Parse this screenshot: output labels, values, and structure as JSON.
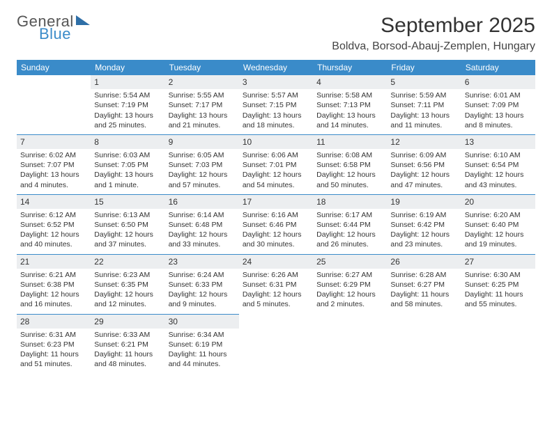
{
  "logo": {
    "general": "General",
    "blue": "Blue"
  },
  "title": "September 2025",
  "location": "Boldva, Borsod-Abauj-Zemplen, Hungary",
  "colors": {
    "header_bg": "#3a8bc9",
    "border": "#3a8bc9",
    "daynum_bg": "#eceef0",
    "text": "#333333"
  },
  "weekdays": [
    "Sunday",
    "Monday",
    "Tuesday",
    "Wednesday",
    "Thursday",
    "Friday",
    "Saturday"
  ],
  "cells": [
    [
      null,
      {
        "n": "1",
        "sr": "Sunrise: 5:54 AM",
        "ss": "Sunset: 7:19 PM",
        "dl1": "Daylight: 13 hours",
        "dl2": "and 25 minutes."
      },
      {
        "n": "2",
        "sr": "Sunrise: 5:55 AM",
        "ss": "Sunset: 7:17 PM",
        "dl1": "Daylight: 13 hours",
        "dl2": "and 21 minutes."
      },
      {
        "n": "3",
        "sr": "Sunrise: 5:57 AM",
        "ss": "Sunset: 7:15 PM",
        "dl1": "Daylight: 13 hours",
        "dl2": "and 18 minutes."
      },
      {
        "n": "4",
        "sr": "Sunrise: 5:58 AM",
        "ss": "Sunset: 7:13 PM",
        "dl1": "Daylight: 13 hours",
        "dl2": "and 14 minutes."
      },
      {
        "n": "5",
        "sr": "Sunrise: 5:59 AM",
        "ss": "Sunset: 7:11 PM",
        "dl1": "Daylight: 13 hours",
        "dl2": "and 11 minutes."
      },
      {
        "n": "6",
        "sr": "Sunrise: 6:01 AM",
        "ss": "Sunset: 7:09 PM",
        "dl1": "Daylight: 13 hours",
        "dl2": "and 8 minutes."
      }
    ],
    [
      {
        "n": "7",
        "sr": "Sunrise: 6:02 AM",
        "ss": "Sunset: 7:07 PM",
        "dl1": "Daylight: 13 hours",
        "dl2": "and 4 minutes."
      },
      {
        "n": "8",
        "sr": "Sunrise: 6:03 AM",
        "ss": "Sunset: 7:05 PM",
        "dl1": "Daylight: 13 hours",
        "dl2": "and 1 minute."
      },
      {
        "n": "9",
        "sr": "Sunrise: 6:05 AM",
        "ss": "Sunset: 7:03 PM",
        "dl1": "Daylight: 12 hours",
        "dl2": "and 57 minutes."
      },
      {
        "n": "10",
        "sr": "Sunrise: 6:06 AM",
        "ss": "Sunset: 7:01 PM",
        "dl1": "Daylight: 12 hours",
        "dl2": "and 54 minutes."
      },
      {
        "n": "11",
        "sr": "Sunrise: 6:08 AM",
        "ss": "Sunset: 6:58 PM",
        "dl1": "Daylight: 12 hours",
        "dl2": "and 50 minutes."
      },
      {
        "n": "12",
        "sr": "Sunrise: 6:09 AM",
        "ss": "Sunset: 6:56 PM",
        "dl1": "Daylight: 12 hours",
        "dl2": "and 47 minutes."
      },
      {
        "n": "13",
        "sr": "Sunrise: 6:10 AM",
        "ss": "Sunset: 6:54 PM",
        "dl1": "Daylight: 12 hours",
        "dl2": "and 43 minutes."
      }
    ],
    [
      {
        "n": "14",
        "sr": "Sunrise: 6:12 AM",
        "ss": "Sunset: 6:52 PM",
        "dl1": "Daylight: 12 hours",
        "dl2": "and 40 minutes."
      },
      {
        "n": "15",
        "sr": "Sunrise: 6:13 AM",
        "ss": "Sunset: 6:50 PM",
        "dl1": "Daylight: 12 hours",
        "dl2": "and 37 minutes."
      },
      {
        "n": "16",
        "sr": "Sunrise: 6:14 AM",
        "ss": "Sunset: 6:48 PM",
        "dl1": "Daylight: 12 hours",
        "dl2": "and 33 minutes."
      },
      {
        "n": "17",
        "sr": "Sunrise: 6:16 AM",
        "ss": "Sunset: 6:46 PM",
        "dl1": "Daylight: 12 hours",
        "dl2": "and 30 minutes."
      },
      {
        "n": "18",
        "sr": "Sunrise: 6:17 AM",
        "ss": "Sunset: 6:44 PM",
        "dl1": "Daylight: 12 hours",
        "dl2": "and 26 minutes."
      },
      {
        "n": "19",
        "sr": "Sunrise: 6:19 AM",
        "ss": "Sunset: 6:42 PM",
        "dl1": "Daylight: 12 hours",
        "dl2": "and 23 minutes."
      },
      {
        "n": "20",
        "sr": "Sunrise: 6:20 AM",
        "ss": "Sunset: 6:40 PM",
        "dl1": "Daylight: 12 hours",
        "dl2": "and 19 minutes."
      }
    ],
    [
      {
        "n": "21",
        "sr": "Sunrise: 6:21 AM",
        "ss": "Sunset: 6:38 PM",
        "dl1": "Daylight: 12 hours",
        "dl2": "and 16 minutes."
      },
      {
        "n": "22",
        "sr": "Sunrise: 6:23 AM",
        "ss": "Sunset: 6:35 PM",
        "dl1": "Daylight: 12 hours",
        "dl2": "and 12 minutes."
      },
      {
        "n": "23",
        "sr": "Sunrise: 6:24 AM",
        "ss": "Sunset: 6:33 PM",
        "dl1": "Daylight: 12 hours",
        "dl2": "and 9 minutes."
      },
      {
        "n": "24",
        "sr": "Sunrise: 6:26 AM",
        "ss": "Sunset: 6:31 PM",
        "dl1": "Daylight: 12 hours",
        "dl2": "and 5 minutes."
      },
      {
        "n": "25",
        "sr": "Sunrise: 6:27 AM",
        "ss": "Sunset: 6:29 PM",
        "dl1": "Daylight: 12 hours",
        "dl2": "and 2 minutes."
      },
      {
        "n": "26",
        "sr": "Sunrise: 6:28 AM",
        "ss": "Sunset: 6:27 PM",
        "dl1": "Daylight: 11 hours",
        "dl2": "and 58 minutes."
      },
      {
        "n": "27",
        "sr": "Sunrise: 6:30 AM",
        "ss": "Sunset: 6:25 PM",
        "dl1": "Daylight: 11 hours",
        "dl2": "and 55 minutes."
      }
    ],
    [
      {
        "n": "28",
        "sr": "Sunrise: 6:31 AM",
        "ss": "Sunset: 6:23 PM",
        "dl1": "Daylight: 11 hours",
        "dl2": "and 51 minutes."
      },
      {
        "n": "29",
        "sr": "Sunrise: 6:33 AM",
        "ss": "Sunset: 6:21 PM",
        "dl1": "Daylight: 11 hours",
        "dl2": "and 48 minutes."
      },
      {
        "n": "30",
        "sr": "Sunrise: 6:34 AM",
        "ss": "Sunset: 6:19 PM",
        "dl1": "Daylight: 11 hours",
        "dl2": "and 44 minutes."
      },
      null,
      null,
      null,
      null
    ]
  ]
}
